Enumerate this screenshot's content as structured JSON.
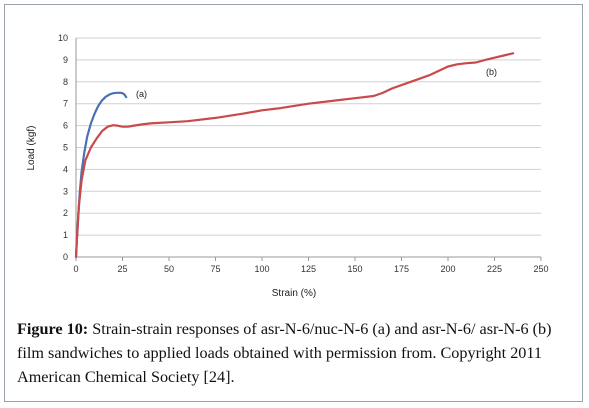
{
  "chart_data": {
    "type": "line",
    "title": "",
    "xlabel": "Strain (%)",
    "ylabel": "Load (kgf)",
    "xlim": [
      0,
      250
    ],
    "ylim": [
      0,
      10
    ],
    "xticks": [
      0,
      25,
      50,
      75,
      100,
      125,
      150,
      175,
      200,
      225,
      250
    ],
    "yticks": [
      0,
      1,
      2,
      3,
      4,
      5,
      6,
      7,
      8,
      9,
      10
    ],
    "grid": "horizontal",
    "legend": "none",
    "series": [
      {
        "name": "(a)",
        "color": "#4a72b0",
        "x": [
          0,
          0.5,
          1.2,
          2,
          3,
          4.5,
          6,
          8,
          10,
          12,
          14,
          16,
          18,
          20,
          22,
          24,
          25,
          26,
          27
        ],
        "y": [
          0,
          0.8,
          1.8,
          2.9,
          3.9,
          4.8,
          5.5,
          6.1,
          6.55,
          6.9,
          7.15,
          7.32,
          7.42,
          7.48,
          7.5,
          7.5,
          7.48,
          7.42,
          7.3
        ]
      },
      {
        "name": "(b)",
        "color": "#c94a4a",
        "x": [
          0,
          0.5,
          1.5,
          3,
          5,
          8,
          11,
          14,
          17,
          20,
          22,
          25,
          28,
          30,
          35,
          40,
          50,
          60,
          75,
          90,
          100,
          110,
          125,
          140,
          150,
          160,
          165,
          170,
          180,
          190,
          200,
          205,
          210,
          215,
          220,
          225,
          230,
          235
        ],
        "y": [
          0,
          0.8,
          2.3,
          3.5,
          4.4,
          5.0,
          5.4,
          5.75,
          5.95,
          6.02,
          6.0,
          5.95,
          5.95,
          5.98,
          6.05,
          6.1,
          6.15,
          6.2,
          6.35,
          6.55,
          6.7,
          6.8,
          7.0,
          7.15,
          7.25,
          7.35,
          7.5,
          7.7,
          8.0,
          8.3,
          8.7,
          8.8,
          8.85,
          8.88,
          9.0,
          9.1,
          9.2,
          9.3
        ]
      }
    ]
  },
  "caption": {
    "label": "Figure 10:",
    "text": "Strain-strain responses of asr-N-6/nuc-N-6 (a) and asr-N-6/ asr-N-6 (b) film sandwiches to applied loads obtained with permission from. Copyright 2011 American Chemical Society [24]."
  }
}
